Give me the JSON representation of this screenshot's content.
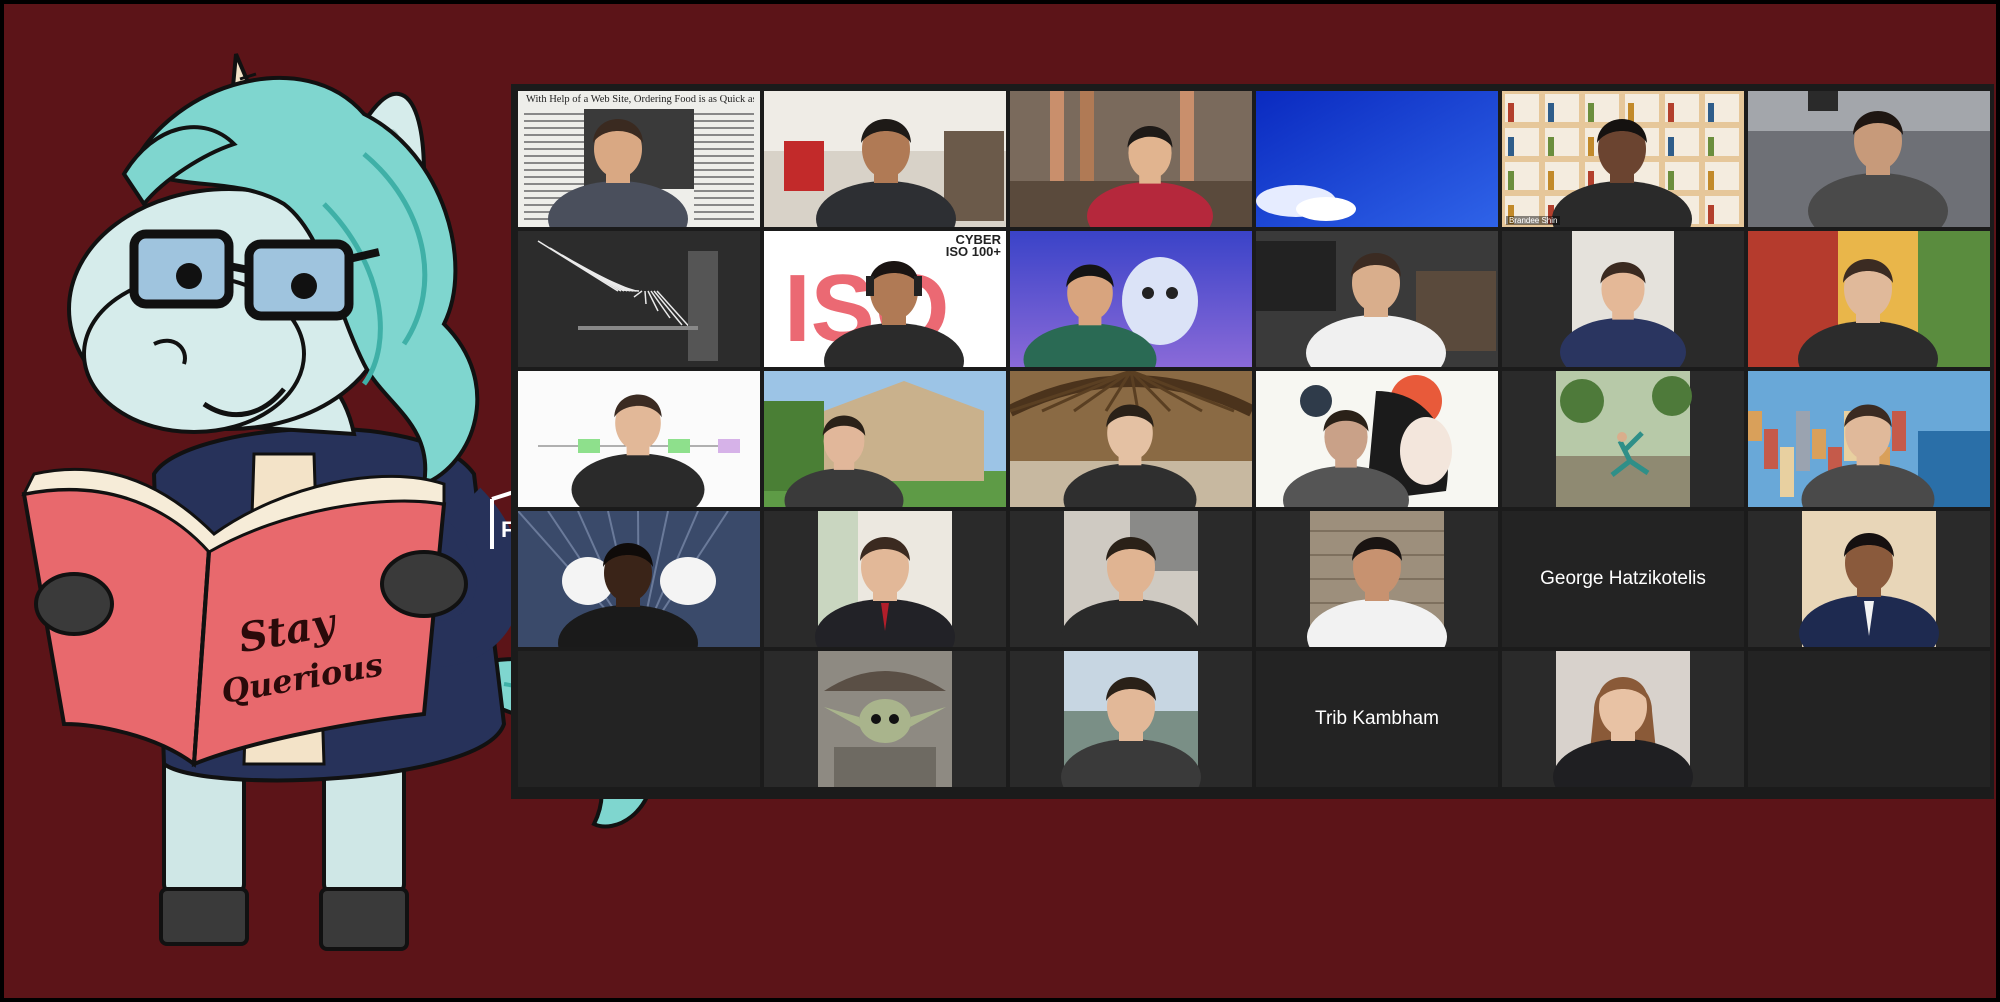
{
  "mascot": {
    "book_title_line1": "Stay",
    "book_title_line2": "Querious",
    "jacket_logo": "F"
  },
  "gallery": {
    "tiles": [
      {
        "kind": "video",
        "bg": "newspaper",
        "caption": "With Help of a Web Site, Ordering Food is as Quick as a Click"
      },
      {
        "kind": "video",
        "bg": "livingroom"
      },
      {
        "kind": "video",
        "bg": "runners"
      },
      {
        "kind": "video",
        "bg": "bluesky"
      },
      {
        "kind": "video",
        "bg": "bookshelf",
        "label": "Brandee Shin"
      },
      {
        "kind": "video",
        "bg": "office"
      },
      {
        "kind": "video",
        "bg": "tesla"
      },
      {
        "kind": "video",
        "bg": "iso100",
        "corner": "CYBER\nISO 100+"
      },
      {
        "kind": "video",
        "bg": "frozen"
      },
      {
        "kind": "video",
        "bg": "workshop"
      },
      {
        "kind": "video",
        "bg": "plain-dark"
      },
      {
        "kind": "video",
        "bg": "anime"
      },
      {
        "kind": "video",
        "bg": "whiteboard"
      },
      {
        "kind": "video",
        "bg": "house"
      },
      {
        "kind": "video",
        "bg": "bamboo"
      },
      {
        "kind": "video",
        "bg": "art"
      },
      {
        "kind": "video",
        "bg": "park"
      },
      {
        "kind": "video",
        "bg": "cinqueterre"
      },
      {
        "kind": "video",
        "bg": "pinky"
      },
      {
        "kind": "video",
        "bg": "portrait-suit"
      },
      {
        "kind": "video",
        "bg": "portrait-office"
      },
      {
        "kind": "video",
        "bg": "stonewall"
      },
      {
        "kind": "name",
        "name": "George Hatzikotelis"
      },
      {
        "kind": "video",
        "bg": "portrait-beige"
      },
      {
        "kind": "empty"
      },
      {
        "kind": "video",
        "bg": "babyyoda"
      },
      {
        "kind": "video",
        "bg": "lake"
      },
      {
        "kind": "name",
        "name": "Trib Kambham"
      },
      {
        "kind": "video",
        "bg": "portrait-woman"
      },
      {
        "kind": "empty"
      }
    ]
  },
  "colors": {
    "frame_bg": "#5c1418",
    "gallery_bg": "#1b1b1b",
    "tile_bg": "#232323",
    "mascot_body": "#d6eceb",
    "mascot_mane": "#7fd6cf",
    "book": "#e8696d",
    "jacket": "#27325a"
  }
}
